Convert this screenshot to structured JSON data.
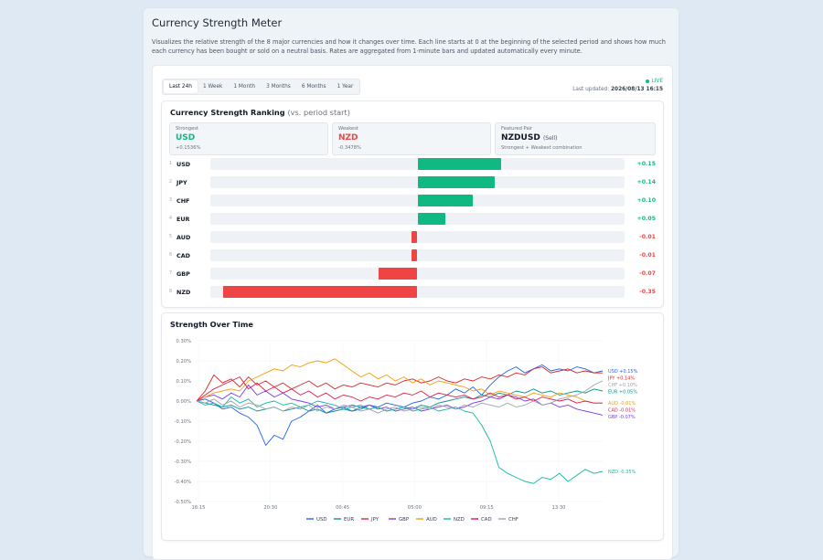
{
  "page": {
    "title": "Currency Strength Meter",
    "description": "Visualizes the relative strength of the 8 major currencies and how it changes over time. Each line starts at 0 at the beginning of the selected period and shows how much each currency has been bought or sold on a neutral basis. Rates are aggregated from 1-minute bars and updated automatically every minute."
  },
  "tabs": [
    "Last 24h",
    "1 Week",
    "1 Month",
    "3 Months",
    "6 Months",
    "1 Year"
  ],
  "active_tab": 0,
  "status": {
    "live": "LIVE",
    "updated_label": "Last updated:",
    "updated_value": "2026/08/13 16:15"
  },
  "ranking": {
    "title": "Currency Strength Ranking",
    "subtitle": "(vs. period start)",
    "strongest": {
      "label": "Strongest",
      "value": "USD",
      "pct": "+0.1536%"
    },
    "weakest": {
      "label": "Weakest",
      "value": "NZD",
      "pct": "-0.3478%"
    },
    "featured": {
      "label": "Featured Pair",
      "value": "NZDUSD",
      "action": "(Sell)",
      "note": "Strongest + Weakest combination"
    },
    "rows": [
      {
        "rank": "1",
        "code": "USD",
        "value": 0.15,
        "label": "+0.15"
      },
      {
        "rank": "2",
        "code": "JPY",
        "value": 0.14,
        "label": "+0.14"
      },
      {
        "rank": "3",
        "code": "CHF",
        "value": 0.1,
        "label": "+0.10"
      },
      {
        "rank": "4",
        "code": "EUR",
        "value": 0.05,
        "label": "+0.05"
      },
      {
        "rank": "5",
        "code": "AUD",
        "value": -0.01,
        "label": "-0.01"
      },
      {
        "rank": "6",
        "code": "CAD",
        "value": -0.01,
        "label": "-0.01"
      },
      {
        "rank": "7",
        "code": "GBP",
        "value": -0.07,
        "label": "-0.07"
      },
      {
        "rank": "8",
        "code": "NZD",
        "value": -0.35,
        "label": "-0.35"
      }
    ],
    "max_abs": 0.36,
    "colors": {
      "positive": "#10b981",
      "negative": "#ef4444"
    }
  },
  "chart_data": {
    "type": "line",
    "title": "Strength Over Time",
    "x_ticks": [
      "16:15",
      "20:30",
      "00:45",
      "05:00",
      "09:15",
      "13:30"
    ],
    "y_ticks": [
      "0.30%",
      "0.20%",
      "0.10%",
      "0.00%",
      "-0.10%",
      "-0.20%",
      "-0.30%",
      "-0.40%",
      "-0.50%"
    ],
    "ylim": [
      -0.5,
      0.3
    ],
    "grid": true,
    "legend_position": "bottom",
    "series": [
      {
        "name": "USD",
        "color": "#2563eb",
        "end_label": "USD +0.15%",
        "values": [
          0,
          0.01,
          -0.01,
          -0.04,
          -0.03,
          -0.06,
          -0.08,
          -0.12,
          -0.22,
          -0.17,
          -0.19,
          -0.1,
          -0.08,
          -0.05,
          -0.02,
          -0.06,
          -0.04,
          -0.03,
          -0.05,
          -0.04,
          -0.02,
          -0.03,
          -0.01,
          -0.02,
          -0.03,
          -0.01,
          0.0,
          0.02,
          0.01,
          0.03,
          0.06,
          0.04,
          0.07,
          0.03,
          0.08,
          0.12,
          0.15,
          0.17,
          0.14,
          0.16,
          0.18,
          0.15,
          0.16,
          0.15,
          0.17,
          0.16,
          0.14,
          0.15
        ]
      },
      {
        "name": "EUR",
        "color": "#0d9488",
        "end_label": "EUR +0.05%",
        "values": [
          0,
          -0.01,
          -0.02,
          -0.03,
          -0.02,
          -0.04,
          -0.03,
          -0.05,
          -0.04,
          -0.03,
          -0.05,
          -0.04,
          -0.03,
          -0.05,
          -0.04,
          -0.06,
          -0.05,
          -0.04,
          -0.05,
          -0.03,
          -0.04,
          -0.03,
          -0.05,
          -0.04,
          -0.03,
          -0.04,
          -0.02,
          -0.03,
          -0.01,
          0.0,
          0.01,
          0.02,
          0.01,
          0.03,
          0.02,
          0.04,
          0.03,
          0.05,
          0.04,
          0.06,
          0.04,
          0.05,
          0.03,
          0.04,
          0.05,
          0.04,
          0.06,
          0.05
        ]
      },
      {
        "name": "JPY",
        "color": "#dc2626",
        "end_label": "JPY +0.14%",
        "values": [
          0,
          0.05,
          0.13,
          0.09,
          0.11,
          0.07,
          0.12,
          0.08,
          0.1,
          0.07,
          0.09,
          0.06,
          0.08,
          0.1,
          0.07,
          0.09,
          0.06,
          0.08,
          0.07,
          0.09,
          0.08,
          0.07,
          0.09,
          0.08,
          0.1,
          0.11,
          0.09,
          0.1,
          0.12,
          0.1,
          0.09,
          0.11,
          0.1,
          0.12,
          0.11,
          0.13,
          0.12,
          0.14,
          0.13,
          0.16,
          0.17,
          0.14,
          0.15,
          0.16,
          0.14,
          0.15,
          0.14,
          0.14
        ]
      },
      {
        "name": "GBP",
        "color": "#7c3aed",
        "end_label": "GBP -0.07%",
        "values": [
          0,
          0.02,
          0.03,
          0.01,
          0.04,
          0.02,
          0.08,
          0.03,
          0.05,
          0.02,
          0.04,
          0.01,
          0.0,
          -0.01,
          -0.03,
          -0.02,
          -0.04,
          -0.03,
          -0.02,
          -0.03,
          -0.02,
          -0.04,
          -0.03,
          -0.05,
          -0.04,
          -0.03,
          -0.05,
          -0.04,
          -0.03,
          -0.02,
          -0.04,
          -0.03,
          -0.01,
          0.0,
          0.02,
          0.01,
          0.03,
          0.02,
          0.0,
          0.01,
          -0.02,
          -0.01,
          -0.03,
          -0.02,
          -0.04,
          -0.05,
          -0.06,
          -0.07
        ]
      },
      {
        "name": "AUD",
        "color": "#f59e0b",
        "end_label": "AUD -0.01%",
        "values": [
          0,
          0.02,
          0.04,
          0.05,
          0.06,
          0.05,
          0.1,
          0.12,
          0.14,
          0.16,
          0.15,
          0.18,
          0.17,
          0.19,
          0.2,
          0.19,
          0.21,
          0.18,
          0.15,
          0.12,
          0.14,
          0.11,
          0.13,
          0.1,
          0.12,
          0.09,
          0.11,
          0.08,
          0.1,
          0.09,
          0.08,
          0.07,
          0.05,
          0.06,
          0.03,
          0.05,
          0.04,
          0.03,
          0.02,
          0.04,
          0.03,
          0.02,
          0.04,
          0.03,
          0.02,
          0.0,
          -0.01,
          -0.01
        ]
      },
      {
        "name": "NZD",
        "color": "#14b8a6",
        "end_label": "NZD -0.35%",
        "values": [
          0,
          -0.02,
          -0.01,
          -0.03,
          0.02,
          -0.01,
          0.01,
          -0.03,
          -0.01,
          0.0,
          -0.02,
          -0.01,
          -0.03,
          -0.02,
          0.0,
          -0.01,
          -0.02,
          -0.04,
          -0.03,
          -0.02,
          -0.04,
          -0.03,
          -0.05,
          -0.04,
          -0.03,
          -0.05,
          -0.04,
          -0.03,
          -0.05,
          -0.04,
          -0.03,
          -0.05,
          -0.06,
          -0.12,
          -0.2,
          -0.33,
          -0.36,
          -0.38,
          -0.4,
          -0.41,
          -0.38,
          -0.39,
          -0.36,
          -0.4,
          -0.37,
          -0.34,
          -0.36,
          -0.35
        ]
      },
      {
        "name": "CAD",
        "color": "#e11d48",
        "end_label": "CAD -0.01%",
        "values": [
          0,
          0.03,
          0.06,
          0.08,
          0.1,
          0.12,
          0.06,
          0.09,
          0.05,
          0.07,
          0.04,
          0.06,
          0.03,
          0.05,
          0.02,
          0.04,
          0.01,
          0.03,
          0.02,
          0.0,
          0.02,
          0.01,
          0.03,
          0.02,
          0.04,
          0.03,
          0.05,
          0.02,
          0.04,
          0.03,
          0.02,
          0.03,
          0.01,
          0.02,
          0.04,
          0.02,
          0.03,
          0.01,
          0.02,
          0.0,
          0.02,
          0.01,
          0.0,
          0.01,
          -0.01,
          0.0,
          -0.01,
          -0.01
        ]
      },
      {
        "name": "CHF",
        "color": "#9ca3af",
        "end_label": "CHF +0.10%",
        "values": [
          0,
          -0.01,
          0.01,
          -0.02,
          0.0,
          -0.03,
          -0.01,
          -0.02,
          -0.04,
          -0.03,
          -0.05,
          -0.03,
          -0.04,
          -0.02,
          -0.05,
          -0.03,
          -0.04,
          -0.02,
          -0.03,
          -0.05,
          -0.04,
          -0.06,
          -0.04,
          -0.03,
          -0.05,
          -0.04,
          -0.03,
          -0.04,
          -0.02,
          -0.03,
          -0.04,
          -0.02,
          -0.03,
          -0.01,
          -0.02,
          -0.03,
          -0.01,
          -0.03,
          -0.02,
          0.0,
          -0.02,
          -0.01,
          0.01,
          0.02,
          0.03,
          0.05,
          0.08,
          0.1
        ]
      }
    ]
  }
}
